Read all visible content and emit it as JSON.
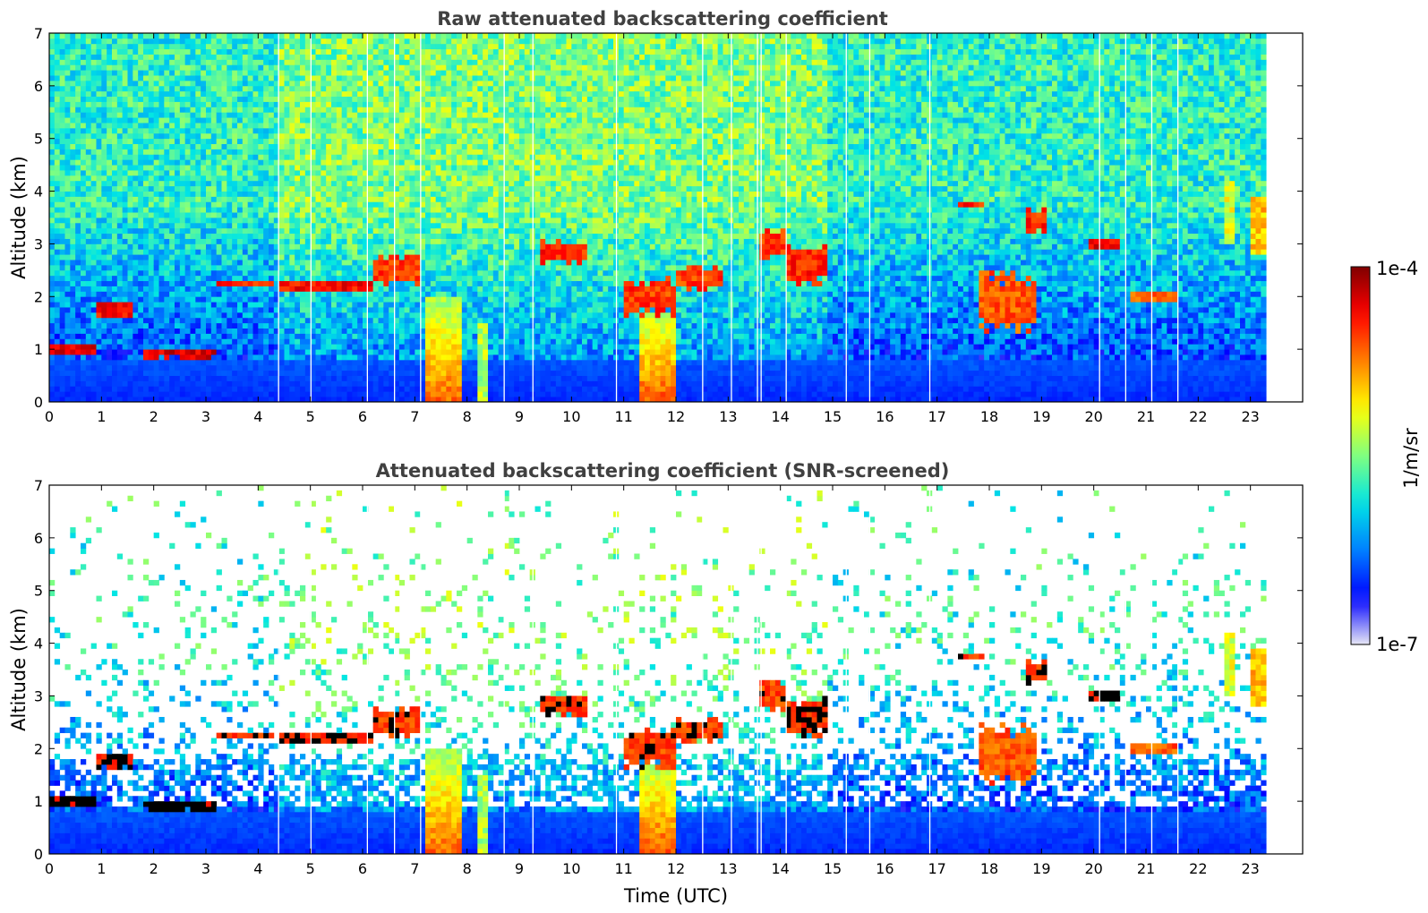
{
  "chart_data": [
    {
      "type": "heatmap",
      "title": "Raw attenuated backscattering coefficient",
      "xlabel": "",
      "ylabel": "Altitude (km)",
      "xlim": [
        0,
        24
      ],
      "ylim": [
        0,
        7
      ],
      "x_ticks": [
        "0",
        "1",
        "2",
        "3",
        "4",
        "5",
        "6",
        "7",
        "8",
        "9",
        "10",
        "11",
        "12",
        "13",
        "14",
        "15",
        "16",
        "17",
        "18",
        "19",
        "20",
        "21",
        "22",
        "23"
      ],
      "y_ticks": [
        "0",
        "1",
        "2",
        "3",
        "4",
        "5",
        "6",
        "7"
      ],
      "data_end_hour": 23.3,
      "gaps_hours": [
        4.38,
        5.0,
        6.08,
        6.6,
        7.1,
        8.7,
        9.25,
        10.85,
        12.5,
        13.05,
        13.55,
        13.62,
        14.1,
        15.25,
        15.7,
        16.85,
        20.1,
        20.6,
        21.1,
        21.6
      ],
      "features": [
        {
          "kind": "layer",
          "x": [
            0.0,
            0.9
          ],
          "y": [
            0.9,
            1.1
          ],
          "intensity": 0.97
        },
        {
          "kind": "layer",
          "x": [
            1.8,
            3.2
          ],
          "y": [
            0.82,
            0.98
          ],
          "intensity": 0.97
        },
        {
          "kind": "layer",
          "x": [
            0.9,
            1.6
          ],
          "y": [
            1.6,
            1.95
          ],
          "intensity": 0.93
        },
        {
          "kind": "layer",
          "x": [
            3.2,
            4.3
          ],
          "y": [
            2.15,
            2.35
          ],
          "intensity": 0.9
        },
        {
          "kind": "layer",
          "x": [
            4.4,
            6.2
          ],
          "y": [
            2.05,
            2.35
          ],
          "intensity": 0.93
        },
        {
          "kind": "layer",
          "x": [
            6.2,
            7.1
          ],
          "y": [
            2.2,
            2.8
          ],
          "intensity": 0.88
        },
        {
          "kind": "layer",
          "x": [
            9.4,
            10.3
          ],
          "y": [
            2.6,
            3.1
          ],
          "intensity": 0.9
        },
        {
          "kind": "layer",
          "x": [
            12.0,
            12.9
          ],
          "y": [
            2.1,
            2.6
          ],
          "intensity": 0.88
        },
        {
          "kind": "layer",
          "x": [
            13.6,
            14.1
          ],
          "y": [
            2.7,
            3.3
          ],
          "intensity": 0.88
        },
        {
          "kind": "layer",
          "x": [
            14.1,
            14.9
          ],
          "y": [
            2.2,
            3.0
          ],
          "intensity": 0.9
        },
        {
          "kind": "layer",
          "x": [
            17.4,
            17.9
          ],
          "y": [
            3.65,
            3.85
          ],
          "intensity": 0.9
        },
        {
          "kind": "layer",
          "x": [
            18.7,
            19.1
          ],
          "y": [
            3.2,
            3.7
          ],
          "intensity": 0.9
        },
        {
          "kind": "layer",
          "x": [
            19.9,
            20.5
          ],
          "y": [
            2.9,
            3.1
          ],
          "intensity": 0.95
        },
        {
          "kind": "layer",
          "x": [
            20.7,
            21.6
          ],
          "y": [
            1.85,
            2.15
          ],
          "intensity": 0.85
        },
        {
          "kind": "layer",
          "x": [
            17.8,
            18.9
          ],
          "y": [
            1.3,
            2.5
          ],
          "intensity": 0.85
        },
        {
          "kind": "layer",
          "x": [
            11.0,
            12.0
          ],
          "y": [
            1.6,
            2.4
          ],
          "intensity": 0.88
        },
        {
          "kind": "plume",
          "x": [
            7.2,
            7.9
          ],
          "y": [
            0.0,
            2.0
          ],
          "intensity": 0.78
        },
        {
          "kind": "plume",
          "x": [
            11.3,
            12.0
          ],
          "y": [
            0.0,
            1.7
          ],
          "intensity": 0.8
        },
        {
          "kind": "streak",
          "x": [
            8.25,
            8.45
          ],
          "y": [
            0.0,
            1.5
          ],
          "intensity": 0.55
        },
        {
          "kind": "streak",
          "x": [
            22.5,
            22.65
          ],
          "y": [
            3.0,
            4.2
          ],
          "intensity": 0.6
        },
        {
          "kind": "streak",
          "x": [
            23.0,
            23.3
          ],
          "y": [
            2.8,
            3.9
          ],
          "intensity": 0.68
        }
      ]
    },
    {
      "type": "heatmap",
      "title": "Attenuated backscattering coefficient (SNR-screened)",
      "xlabel": "Time (UTC)",
      "ylabel": "Altitude (km)",
      "xlim": [
        0,
        24
      ],
      "ylim": [
        0,
        7
      ],
      "x_ticks": [
        "0",
        "1",
        "2",
        "3",
        "4",
        "5",
        "6",
        "7",
        "8",
        "9",
        "10",
        "11",
        "12",
        "13",
        "14",
        "15",
        "16",
        "17",
        "18",
        "19",
        "20",
        "21",
        "22",
        "23"
      ],
      "y_ticks": [
        "0",
        "1",
        "2",
        "3",
        "4",
        "5",
        "6",
        "7"
      ],
      "data_end_hour": 23.3,
      "screened": true,
      "saturated_color": "#000000"
    }
  ],
  "colorbar": {
    "label": "1/m/sr",
    "max_label": "1e-4",
    "min_label": "1e-7",
    "scale": "log",
    "range": [
      1e-07,
      0.0001
    ],
    "colormap": "jet",
    "colors": [
      "#e6e6f5",
      "#0000ff",
      "#0080ff",
      "#00e5e5",
      "#80ff80",
      "#ffff00",
      "#ff8000",
      "#ff0000",
      "#800000"
    ]
  }
}
